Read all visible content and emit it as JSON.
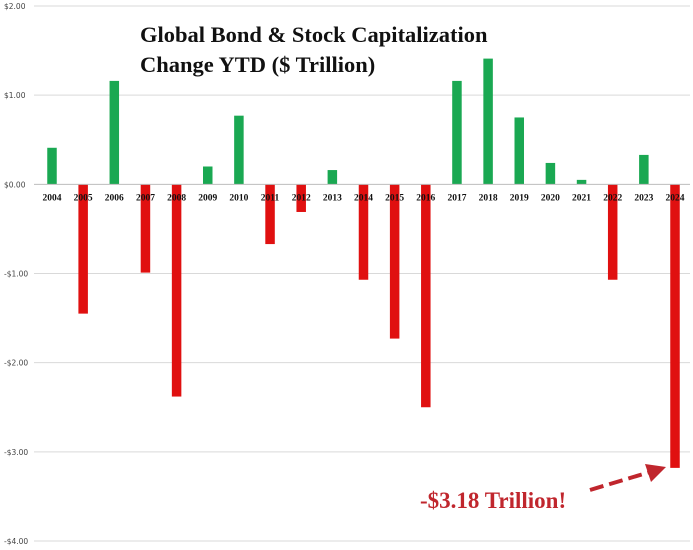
{
  "chart_data": {
    "type": "bar",
    "title_lines": [
      "Global Bond & Stock Capitalization",
      "Change YTD ($ Trillion)"
    ],
    "categories": [
      "2004",
      "2005",
      "2006",
      "2007",
      "2008",
      "2009",
      "2010",
      "2011",
      "2012",
      "2013",
      "2014",
      "2015",
      "2016",
      "2017",
      "2018",
      "2019",
      "2020",
      "2021",
      "2022",
      "2023",
      "2024"
    ],
    "values": [
      0.41,
      -1.45,
      1.16,
      -0.99,
      -2.38,
      0.2,
      0.77,
      -0.67,
      -0.31,
      0.16,
      -1.07,
      -1.73,
      -2.5,
      1.16,
      1.41,
      0.75,
      0.24,
      0.05,
      -1.07,
      0.33,
      -3.18
    ],
    "y_tick_labels": [
      "$2.00",
      "$1.00",
      "$0.00",
      "-$1.00",
      "-$2.00",
      "-$3.00",
      "-$4.00"
    ],
    "y_tick_values": [
      2,
      1,
      0,
      -1,
      -2,
      -3,
      -4
    ],
    "ylim": [
      -4,
      2
    ],
    "grid": true,
    "colors": {
      "positive": "#1aa852",
      "negative": "#e01010",
      "grid": "#d9d9d9",
      "annotation": "#c0262d"
    },
    "annotation": {
      "text": "-$3.18 Trillion!",
      "target": "2024"
    }
  }
}
